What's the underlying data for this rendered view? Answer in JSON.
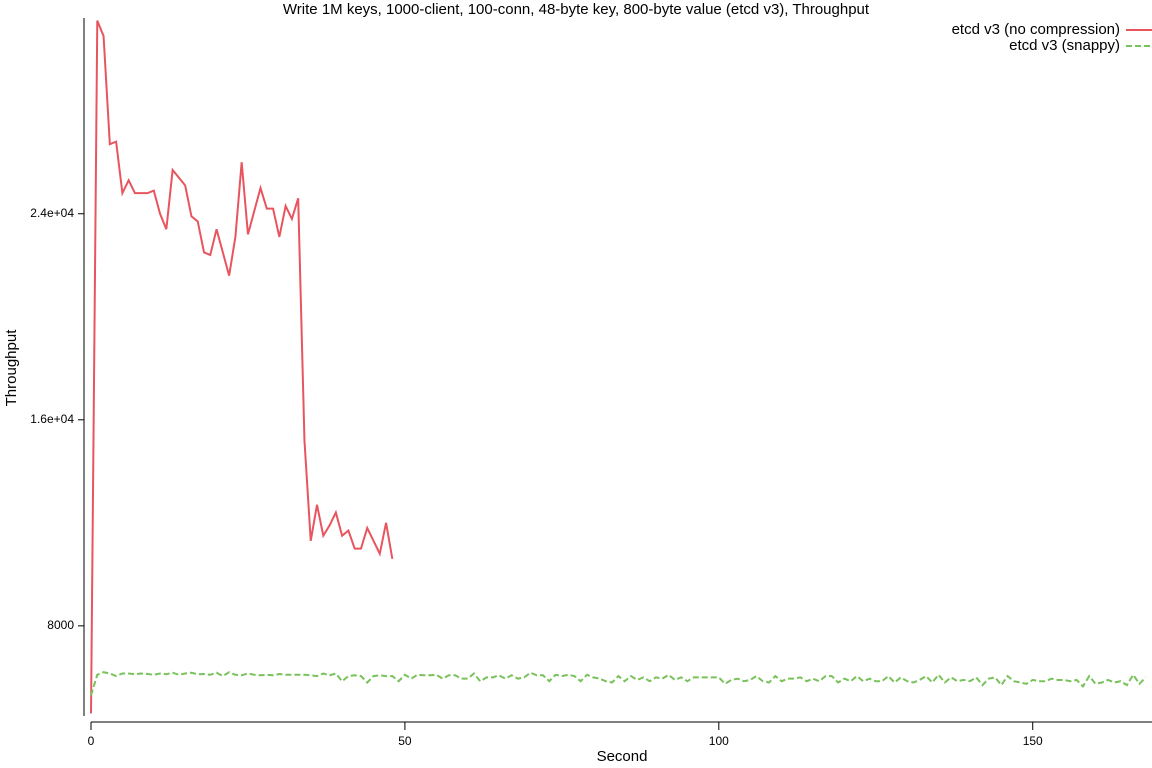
{
  "chart_data": {
    "type": "line",
    "title": "Write 1M keys, 1000-client, 100-conn, 48-byte key, 800-byte value (etcd v3), Throughput",
    "x_label": "Second",
    "y_label": "Throughput",
    "xlim": [
      0,
      169
    ],
    "xticks": [
      0,
      50,
      100,
      150
    ],
    "ylim": [
      4500,
      31600
    ],
    "yticks": [
      8000,
      {
        "value": 16000,
        "label": "1.6e+04"
      },
      {
        "value": 24000,
        "label": "2.4e+04"
      }
    ],
    "legend": "top-right",
    "series": [
      {
        "name": "etcd v3 (no compression)",
        "color": "#e8555f",
        "dash": "solid",
        "x": [
          0,
          1,
          2,
          3,
          4,
          5,
          6,
          7,
          8,
          9,
          10,
          11,
          12,
          13,
          14,
          15,
          16,
          17,
          18,
          19,
          20,
          21,
          22,
          23,
          24,
          25,
          26,
          27,
          28,
          29,
          30,
          31,
          32,
          33,
          34,
          35,
          36,
          37,
          38,
          39,
          40,
          41,
          42,
          43,
          44,
          45,
          46,
          47,
          48
        ],
        "values": [
          4600,
          31500,
          30900,
          26700,
          26800,
          24800,
          25300,
          24800,
          24800,
          24800,
          24900,
          24000,
          23400,
          25700,
          25400,
          25100,
          23900,
          23700,
          22500,
          22400,
          23400,
          22500,
          21600,
          23100,
          26000,
          23200,
          24100,
          25000,
          24200,
          24200,
          23100,
          24300,
          23800,
          24600,
          15200,
          11300,
          12700,
          11500,
          11900,
          12400,
          11500,
          11700,
          11000,
          11000,
          11800,
          11300,
          10800,
          12000,
          10600
        ]
      },
      {
        "name": "etcd v3 (snappy)",
        "color": "#78c25a",
        "dash": "dashed",
        "x": [
          0,
          1,
          2,
          3,
          4,
          5,
          6,
          7,
          8,
          9,
          10,
          11,
          12,
          13,
          14,
          15,
          16,
          17,
          18,
          19,
          20,
          21,
          22,
          23,
          24,
          25,
          26,
          27,
          28,
          29,
          30,
          31,
          32,
          33,
          34,
          35,
          36,
          37,
          38,
          39,
          40,
          41,
          42,
          43,
          44,
          45,
          46,
          47,
          48,
          49,
          50,
          51,
          52,
          53,
          54,
          55,
          56,
          57,
          58,
          59,
          60,
          61,
          62,
          63,
          64,
          65,
          66,
          67,
          68,
          69,
          70,
          71,
          72,
          73,
          74,
          75,
          76,
          77,
          78,
          79,
          80,
          81,
          82,
          83,
          84,
          85,
          86,
          87,
          88,
          89,
          90,
          91,
          92,
          93,
          94,
          95,
          96,
          97,
          98,
          99,
          100,
          101,
          102,
          103,
          104,
          105,
          106,
          107,
          108,
          109,
          110,
          111,
          112,
          113,
          114,
          115,
          116,
          117,
          118,
          119,
          120,
          121,
          122,
          123,
          124,
          125,
          126,
          127,
          128,
          129,
          130,
          131,
          132,
          133,
          134,
          135,
          136,
          137,
          138,
          139,
          140,
          141,
          142,
          143,
          144,
          145,
          146,
          147,
          148,
          149,
          150,
          151,
          152,
          153,
          154,
          155,
          156,
          157,
          158,
          159,
          160,
          161,
          162,
          163,
          164,
          165,
          166,
          167,
          168
        ],
        "values": [
          5300,
          6100,
          6200,
          6150,
          6050,
          6150,
          6150,
          6120,
          6150,
          6130,
          6100,
          6150,
          6120,
          6180,
          6100,
          6150,
          6180,
          6120,
          6130,
          6100,
          6180,
          6050,
          6200,
          6100,
          6080,
          6150,
          6100,
          6080,
          6100,
          6080,
          6130,
          6100,
          6100,
          6100,
          6100,
          6080,
          6050,
          6150,
          6080,
          6150,
          5850,
          6050,
          6080,
          6050,
          5800,
          6050,
          6080,
          6050,
          6050,
          5850,
          6100,
          5950,
          6100,
          6080,
          6080,
          6100,
          5950,
          6080,
          6080,
          5950,
          5950,
          6150,
          5850,
          6000,
          6000,
          6080,
          5950,
          6080,
          5950,
          6000,
          6180,
          6080,
          6080,
          5850,
          6100,
          6050,
          6100,
          6050,
          5850,
          6100,
          6000,
          5950,
          5850,
          5800,
          6050,
          5850,
          6050,
          5900,
          6000,
          5850,
          6000,
          5950,
          6100,
          5900,
          6000,
          5850,
          6000,
          6000,
          6000,
          6000,
          6000,
          5750,
          5900,
          5950,
          5850,
          5900,
          6050,
          5850,
          5800,
          6050,
          5850,
          5950,
          5950,
          6000,
          5850,
          5950,
          5850,
          6050,
          6050,
          5800,
          5950,
          5850,
          6050,
          5850,
          5950,
          5850,
          5850,
          6050,
          5800,
          6000,
          5850,
          5800,
          5900,
          6050,
          5800,
          6100,
          5800,
          6000,
          5850,
          5900,
          5850,
          6000,
          5700,
          5950,
          6000,
          5700,
          6050,
          5850,
          5800,
          5750,
          5900,
          5850,
          5850,
          5950,
          5900,
          5900,
          5850,
          5900,
          5650,
          6050,
          5750,
          5800,
          5900,
          5800,
          5850,
          5700,
          6100,
          5750,
          6000
        ]
      }
    ]
  }
}
